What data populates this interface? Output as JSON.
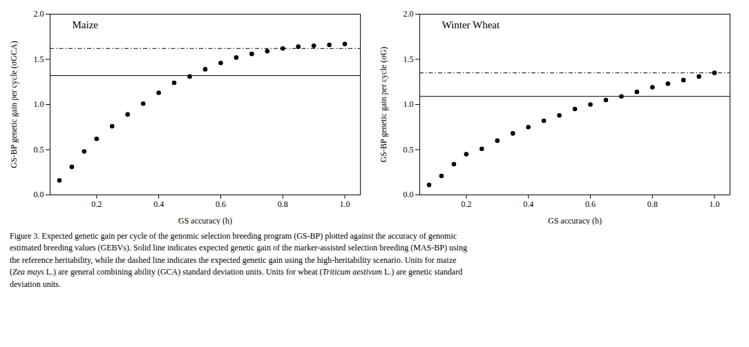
{
  "chart_data": [
    {
      "type": "scatter",
      "title": "Maize",
      "x_label": "GS accuracy (h)",
      "y_label": "GS-BP genetic gain per cycle (σGCA)",
      "x": [
        0.08,
        0.12,
        0.16,
        0.2,
        0.25,
        0.3,
        0.35,
        0.4,
        0.45,
        0.5,
        0.55,
        0.6,
        0.65,
        0.7,
        0.75,
        0.8,
        0.85,
        0.9,
        0.95,
        1.0
      ],
      "values": [
        0.16,
        0.31,
        0.48,
        0.62,
        0.76,
        0.89,
        1.01,
        1.13,
        1.24,
        1.31,
        1.39,
        1.46,
        1.52,
        1.56,
        1.59,
        1.62,
        1.64,
        1.65,
        1.66,
        1.67
      ],
      "color": "black",
      "reference_lines": [
        {
          "value": 1.32,
          "line_style": "solid",
          "color": "black"
        },
        {
          "value": 1.62,
          "line_style": "dashdot",
          "color": "black"
        }
      ],
      "xlim": [
        0.05,
        1.05
      ],
      "xticks": [
        0.2,
        0.4,
        0.6,
        0.8,
        {
          "value": 1.0,
          "label": "1.0"
        }
      ],
      "ylim": [
        0.0,
        2.0
      ],
      "yticks": [
        {
          "value": 0.0,
          "label": "0.0"
        },
        0.5,
        {
          "value": 1.0,
          "label": "1.0"
        },
        1.5,
        {
          "value": 2.0,
          "label": "2.0"
        }
      ]
    },
    {
      "type": "scatter",
      "title": "Winter Wheat",
      "x_label": "GS accuracy (h)",
      "y_label": "GS-BP genetic gain per cycle (σG)",
      "x": [
        0.08,
        0.12,
        0.16,
        0.2,
        0.25,
        0.3,
        0.35,
        0.4,
        0.45,
        0.5,
        0.55,
        0.6,
        0.65,
        0.7,
        0.75,
        0.8,
        0.85,
        0.9,
        0.95,
        1.0
      ],
      "values": [
        0.11,
        0.21,
        0.34,
        0.45,
        0.51,
        0.6,
        0.68,
        0.75,
        0.82,
        0.88,
        0.95,
        1.0,
        1.05,
        1.09,
        1.14,
        1.19,
        1.23,
        1.27,
        1.31,
        1.35
      ],
      "color": "black",
      "reference_lines": [
        {
          "value": 1.09,
          "line_style": "solid",
          "color": "black"
        },
        {
          "value": 1.35,
          "line_style": "dashdot",
          "color": "black"
        }
      ],
      "xlim": [
        0.05,
        1.05
      ],
      "xticks": [
        0.2,
        0.4,
        0.6,
        0.8,
        {
          "value": 1.0,
          "label": "1.0"
        }
      ],
      "ylim": [
        0.0,
        2.0
      ],
      "yticks": [
        {
          "value": 0.0,
          "label": "0.0"
        },
        0.5,
        {
          "value": 1.0,
          "label": "1.0"
        },
        1.5,
        {
          "value": 2.0,
          "label": "2.0"
        }
      ]
    }
  ],
  "caption": [
    {
      "text": "Figure 3. Expected genetic gain per cycle of the genomic selection breeding program (GS-BP) plotted against the accuracy of genomic\nestimated breeding values (GEBVs). Solid line indicates expected genetic gain of the marker-assisted selection breeding (MAS-BP) using\nthe reference heritability, while the dashed line indicates the expected genetic gain using the high-heritability scenario. Units for maize\n(",
      "style": "normal"
    },
    {
      "text": "Zea mays",
      "style": "italic"
    },
    {
      "text": " L.) are general combining ability (GCA) standard deviation units. Units for wheat (",
      "style": "normal"
    },
    {
      "text": "Triticum aestivum",
      "style": "italic"
    },
    {
      "text": " L.) are genetic standard\ndeviation units.",
      "style": "normal"
    }
  ]
}
